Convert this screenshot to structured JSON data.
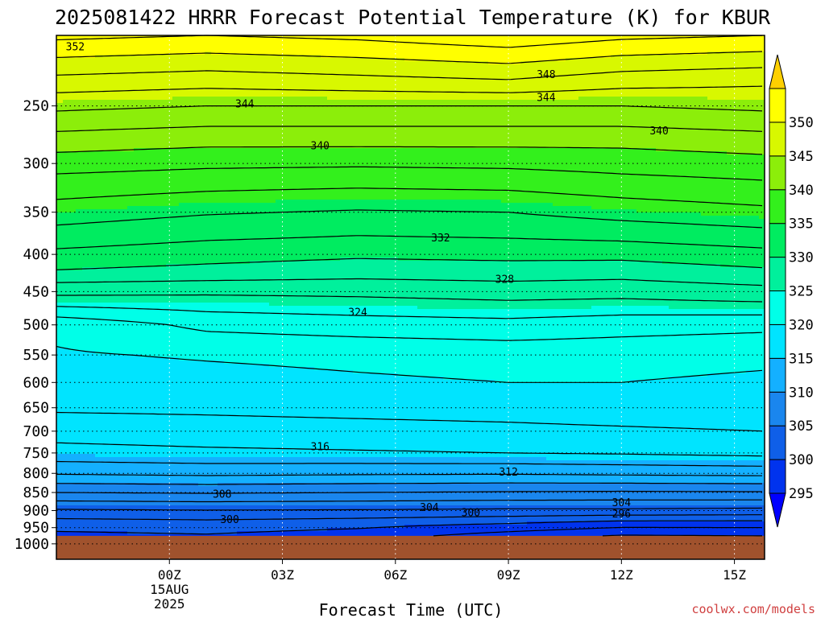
{
  "chart_data": {
    "type": "heatmap",
    "title": "2025081422 HRRR Forecast Potential Temperature (K) for KBUR",
    "xlabel": "Forecast Time (UTC)",
    "ylabel": "",
    "credit": "coolwx.com/models",
    "x_range_hours": [
      -3,
      15.8
    ],
    "x_ticks": [
      {
        "hour": 0,
        "lines": [
          "00Z",
          "15AUG",
          "2025"
        ]
      },
      {
        "hour": 3,
        "lines": [
          "03Z"
        ]
      },
      {
        "hour": 6,
        "lines": [
          "06Z"
        ]
      },
      {
        "hour": 9,
        "lines": [
          "09Z"
        ]
      },
      {
        "hour": 12,
        "lines": [
          "12Z"
        ]
      },
      {
        "hour": 15,
        "lines": [
          "15Z"
        ]
      }
    ],
    "y_axis": {
      "scale": "log-pressure",
      "top_hPa": 200,
      "bottom_hPa": 1050,
      "ticks": [
        250,
        300,
        350,
        400,
        450,
        500,
        550,
        600,
        650,
        700,
        750,
        800,
        850,
        900,
        950,
        1000
      ],
      "inverted": true
    },
    "colorbar": {
      "levels": [
        295,
        300,
        305,
        310,
        315,
        320,
        325,
        330,
        335,
        340,
        345,
        350
      ],
      "labels": [
        "295",
        "300",
        "305",
        "310",
        "315",
        "320",
        "325",
        "330",
        "335",
        "340",
        "345",
        "350"
      ],
      "colors": [
        "#0000ff",
        "#0033ee",
        "#0f5fe8",
        "#1a86ee",
        "#14b0ff",
        "#00e4ff",
        "#00ffe8",
        "#00f09c",
        "#00ec60",
        "#33f01c",
        "#8cee0a",
        "#d8f800",
        "#ffff00",
        "#ffd000"
      ],
      "extend": "both"
    },
    "ground": {
      "below_hPa": 975,
      "color": "#a0522d"
    },
    "contour_interval_K": 2,
    "theta_profiles": {
      "hours": [
        -3,
        1,
        5,
        9,
        12,
        15.8
      ],
      "levels_hPa": [
        200,
        230,
        250,
        280,
        310,
        350,
        380,
        420,
        460,
        500,
        550,
        600,
        650,
        700,
        750,
        800,
        850,
        900,
        940,
        975
      ],
      "theta_K": [
        [
          352.5,
          352.0,
          352.5,
          353.5,
          352.5,
          352.0
        ],
        [
          347.5,
          347.0,
          347.5,
          348.0,
          347.0,
          346.5
        ],
        [
          344.5,
          344.0,
          344.0,
          344.0,
          344.0,
          344.5
        ],
        [
          341.0,
          340.5,
          340.5,
          340.5,
          340.5,
          341.0
        ],
        [
          338.0,
          337.5,
          337.3,
          337.5,
          338.0,
          338.5
        ],
        [
          335.0,
          334.2,
          333.8,
          334.0,
          334.8,
          335.5
        ],
        [
          333.0,
          332.2,
          331.8,
          332.0,
          332.3,
          333.0
        ],
        [
          330.0,
          329.5,
          329.0,
          329.2,
          329.0,
          329.8
        ],
        [
          325.5,
          325.5,
          325.8,
          326.2,
          326.0,
          326.5
        ],
        [
          320.5,
          322.5,
          323.0,
          323.3,
          322.8,
          322.5
        ],
        [
          319.8,
          320.2,
          320.5,
          320.8,
          320.8,
          320.5
        ],
        [
          319.0,
          319.3,
          319.7,
          320.0,
          320.0,
          319.6
        ],
        [
          318.3,
          318.4,
          318.6,
          318.8,
          319.1,
          319.3
        ],
        [
          316.8,
          317.1,
          317.3,
          317.5,
          317.7,
          318.0
        ],
        [
          315.3,
          315.6,
          315.8,
          316.0,
          316.2,
          316.6
        ],
        [
          312.2,
          312.5,
          312.3,
          312.2,
          312.4,
          312.6
        ],
        [
          308.0,
          308.2,
          308.0,
          307.8,
          307.7,
          307.8
        ],
        [
          303.7,
          303.9,
          303.8,
          303.6,
          303.6,
          303.4
        ],
        [
          300.8,
          301.1,
          300.6,
          299.8,
          298.8,
          298.8
        ],
        [
          299.5,
          299.8,
          299.0,
          297.0,
          295.8,
          296.0
        ]
      ]
    },
    "contour_labels": [
      {
        "text": "352",
        "hour": -2.5,
        "hPa": 207
      },
      {
        "text": "348",
        "hour": 10.0,
        "hPa": 226
      },
      {
        "text": "344",
        "hour": 2.0,
        "hPa": 248
      },
      {
        "text": "344",
        "hour": 10.0,
        "hPa": 243
      },
      {
        "text": "340",
        "hour": 4.0,
        "hPa": 283
      },
      {
        "text": "340",
        "hour": 13.0,
        "hPa": 270
      },
      {
        "text": "332",
        "hour": 7.2,
        "hPa": 379
      },
      {
        "text": "328",
        "hour": 8.9,
        "hPa": 432
      },
      {
        "text": "324",
        "hour": 5.0,
        "hPa": 480
      },
      {
        "text": "316",
        "hour": 4.0,
        "hPa": 734
      },
      {
        "text": "312",
        "hour": 9.0,
        "hPa": 795
      },
      {
        "text": "308",
        "hour": 1.4,
        "hPa": 853
      },
      {
        "text": "304",
        "hour": 6.9,
        "hPa": 890
      },
      {
        "text": "304",
        "hour": 12.0,
        "hPa": 876
      },
      {
        "text": "300",
        "hour": 8.0,
        "hPa": 905
      },
      {
        "text": "300",
        "hour": 1.6,
        "hPa": 925
      },
      {
        "text": "296",
        "hour": 12.0,
        "hPa": 908
      }
    ]
  }
}
